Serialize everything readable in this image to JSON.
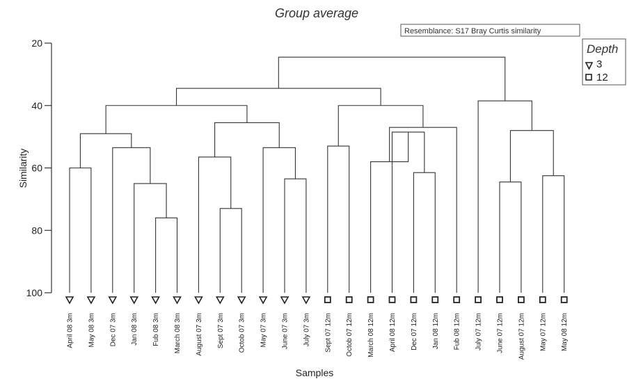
{
  "chart_data": {
    "type": "dendrogram",
    "title": "Group average",
    "annotation": "Resemblance: S17 Bray Curtis similarity",
    "xlabel": "Samples",
    "ylabel": "Similarity",
    "ylim": [
      100,
      20
    ],
    "yticks": [
      20,
      40,
      60,
      80,
      100
    ],
    "legend": {
      "title": "Depth",
      "position": "top-right",
      "entries": [
        {
          "label": "3",
          "marker": "triangle-down"
        },
        {
          "label": "12",
          "marker": "square"
        }
      ]
    },
    "samples": [
      {
        "label": "April 08 3m",
        "depth": "3"
      },
      {
        "label": "May 08 3m",
        "depth": "3"
      },
      {
        "label": "Dec 07 3m",
        "depth": "3"
      },
      {
        "label": "Jan 08 3m",
        "depth": "3"
      },
      {
        "label": "Fub 08 3m",
        "depth": "3"
      },
      {
        "label": "March 08 3m",
        "depth": "3"
      },
      {
        "label": "August 07 3m",
        "depth": "3"
      },
      {
        "label": "Sept 07 3m",
        "depth": "3"
      },
      {
        "label": "Octob 07 3m",
        "depth": "3"
      },
      {
        "label": "May 07 3m",
        "depth": "3"
      },
      {
        "label": "June 07 3m",
        "depth": "3"
      },
      {
        "label": "July 07 3m",
        "depth": "3"
      },
      {
        "label": "Sept 07 12m",
        "depth": "12"
      },
      {
        "label": "Octob 07 12m",
        "depth": "12"
      },
      {
        "label": "March 08 12m",
        "depth": "12"
      },
      {
        "label": "April 08 12m",
        "depth": "12"
      },
      {
        "label": "Dec 07 12m",
        "depth": "12"
      },
      {
        "label": "Jan 08 12m",
        "depth": "12"
      },
      {
        "label": "Fub 08 12m",
        "depth": "12"
      },
      {
        "label": "July 07 12m",
        "depth": "12"
      },
      {
        "label": "June 07 12m",
        "depth": "12"
      },
      {
        "label": "August 07 12m",
        "depth": "12"
      },
      {
        "label": "May 07 12m",
        "depth": "12"
      },
      {
        "label": "May 08 12m",
        "depth": "12"
      }
    ],
    "merges": [
      {
        "id": "m1",
        "left": 0,
        "right": 1,
        "similarity": 60
      },
      {
        "id": "m2",
        "left": 4,
        "right": 5,
        "similarity": 76
      },
      {
        "id": "m3",
        "left": 3,
        "right": "m2",
        "similarity": 65
      },
      {
        "id": "m4",
        "left": 2,
        "right": "m3",
        "similarity": 53.5
      },
      {
        "id": "m5",
        "left": "m1",
        "right": "m4",
        "similarity": 49
      },
      {
        "id": "m6",
        "left": 7,
        "right": 8,
        "similarity": 73
      },
      {
        "id": "m7",
        "left": 6,
        "right": "m6",
        "similarity": 56.5
      },
      {
        "id": "m8",
        "left": 10,
        "right": 11,
        "similarity": 63.5
      },
      {
        "id": "m9",
        "left": 9,
        "right": "m8",
        "similarity": 53.5
      },
      {
        "id": "m10",
        "left": "m7",
        "right": "m9",
        "similarity": 45.5
      },
      {
        "id": "m11",
        "left": "m5",
        "right": "m10",
        "similarity": 40
      },
      {
        "id": "m12",
        "left": 12,
        "right": 13,
        "similarity": 53
      },
      {
        "id": "m13",
        "left": 16,
        "right": 17,
        "similarity": 61.5
      },
      {
        "id": "m14",
        "left": 15,
        "right": "m13",
        "similarity": 48.5
      },
      {
        "id": "m15",
        "left": 14,
        "right": "m14",
        "similarity": 58
      },
      {
        "id": "m16",
        "left": "m15",
        "right": 18,
        "similarity": 47
      },
      {
        "id": "m17",
        "left": "m12",
        "right": "m16",
        "similarity": 40
      },
      {
        "id": "m18",
        "left": "m11",
        "right": "m17",
        "similarity": 34.5
      },
      {
        "id": "m19",
        "left": 20,
        "right": 21,
        "similarity": 64.5
      },
      {
        "id": "m20",
        "left": 22,
        "right": 23,
        "similarity": 62.5
      },
      {
        "id": "m21",
        "left": "m19",
        "right": "m20",
        "similarity": 48
      },
      {
        "id": "m22",
        "left": 19,
        "right": "m21",
        "similarity": 38.5
      },
      {
        "id": "m23",
        "left": "m18",
        "right": "m22",
        "similarity": 24.5
      }
    ]
  }
}
